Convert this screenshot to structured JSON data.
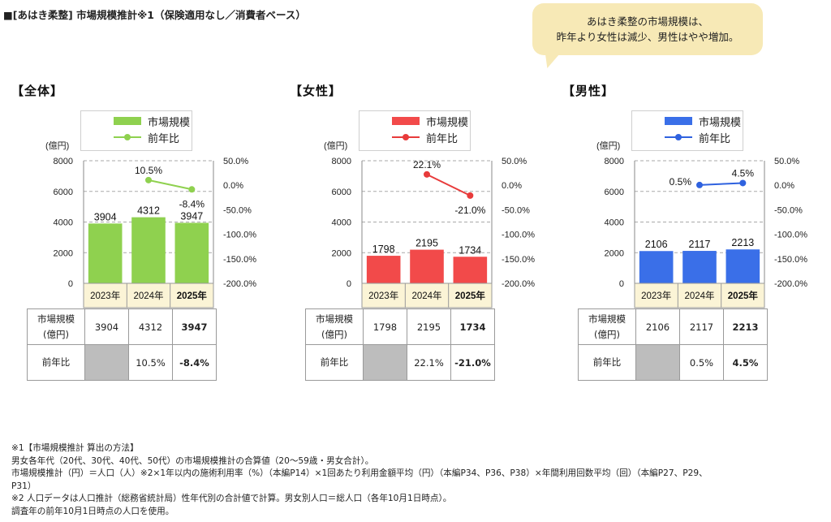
{
  "page_title": "■[あはき柔整] 市場規模推計※1（保険適用なし／消費者ベース）",
  "callout": {
    "line1": "あはき柔整の市場規模は、",
    "line2": "昨年より女性は減少、男性はやや増加。",
    "color": "#f7e9b6"
  },
  "legend": {
    "bar_label": "市場規模",
    "line_label": "前年比"
  },
  "y_left_unit": "(億円)",
  "table_row_labels": {
    "market_line1": "市場規模",
    "market_line2": "(億円)",
    "yoy": "前年比"
  },
  "chart_data": [
    {
      "type": "bar",
      "title": "【全体】",
      "categories": [
        "2023年",
        "2024年",
        "2025年"
      ],
      "bold_category": "2025年",
      "bar_color": "#8fd14f",
      "line_color": "#8fd14f",
      "bar_values": [
        3904,
        4312,
        3947
      ],
      "bar_labels": [
        "3904",
        "4312",
        "3947"
      ],
      "line_values": [
        null,
        10.5,
        -8.4
      ],
      "line_labels": [
        "",
        "10.5%",
        "-8.4%"
      ],
      "y_left": {
        "ticks": [
          "0",
          "2000",
          "4000",
          "6000",
          "8000"
        ],
        "lim": [
          0,
          8000
        ]
      },
      "y_right": {
        "ticks": [
          "-200.0%",
          "-150.0%",
          "-100.0%",
          "-50.0%",
          "0.0%",
          "50.0%"
        ],
        "lim": [
          -200,
          50
        ]
      },
      "table": {
        "market": [
          "3904",
          "4312",
          "3947"
        ],
        "yoy": [
          "",
          "10.5%",
          "-8.4%"
        ]
      }
    },
    {
      "type": "bar",
      "title": "【女性】",
      "categories": [
        "2023年",
        "2024年",
        "2025年"
      ],
      "bold_category": "2025年",
      "bar_color": "#f24a4a",
      "line_color": "#e83b3b",
      "bar_values": [
        1798,
        2195,
        1734
      ],
      "bar_labels": [
        "1798",
        "2195",
        "1734"
      ],
      "line_values": [
        null,
        22.1,
        -21.0
      ],
      "line_labels": [
        "",
        "22.1%",
        "-21.0%"
      ],
      "y_left": {
        "ticks": [
          "0",
          "2000",
          "4000",
          "6000",
          "8000"
        ],
        "lim": [
          0,
          8000
        ]
      },
      "y_right": {
        "ticks": [
          "-200.0%",
          "-150.0%",
          "-100.0%",
          "-50.0%",
          "0.0%",
          "50.0%"
        ],
        "lim": [
          -200,
          50
        ]
      },
      "table": {
        "market": [
          "1798",
          "2195",
          "1734"
        ],
        "yoy": [
          "",
          "22.1%",
          "-21.0%"
        ]
      }
    },
    {
      "type": "bar",
      "title": "【男性】",
      "categories": [
        "2023年",
        "2024年",
        "2025年"
      ],
      "bold_category": "2025年",
      "bar_color": "#3a6fe8",
      "line_color": "#2f62df",
      "bar_values": [
        2106,
        2117,
        2213
      ],
      "bar_labels": [
        "2106",
        "2117",
        "2213"
      ],
      "line_values": [
        null,
        0.5,
        4.5
      ],
      "line_labels": [
        "",
        "0.5%",
        "4.5%"
      ],
      "y_left": {
        "ticks": [
          "0",
          "2000",
          "4000",
          "6000",
          "8000"
        ],
        "lim": [
          0,
          8000
        ]
      },
      "y_right": {
        "ticks": [
          "-200.0%",
          "-150.0%",
          "-100.0%",
          "-50.0%",
          "0.0%",
          "50.0%"
        ],
        "lim": [
          -200,
          50
        ]
      },
      "table": {
        "market": [
          "2106",
          "2117",
          "2213"
        ],
        "yoy": [
          "",
          "0.5%",
          "4.5%"
        ]
      }
    }
  ],
  "footnotes": [
    "※1【市場規模推計  算出の方法】",
    "男女各年代（20代、30代、40代、50代）の市場規模推計の合算値（20～59歳・男女合計）。",
    "市場規模推計（円）＝人口（人）※2×1年以内の施術利用率（%）（本編P14）×1回あたり利用金額平均（円）（本編P34、P36、P38）×年間利用回数平均（回）（本編P27、P29、",
    "P31）",
    "※2 人口データは人口推計（総務省統計局）性年代別の合計値で計算。男女別人口＝総人口（各年10月1日時点）。",
    "調査年の前年10月1日時点の人口を使用。"
  ]
}
